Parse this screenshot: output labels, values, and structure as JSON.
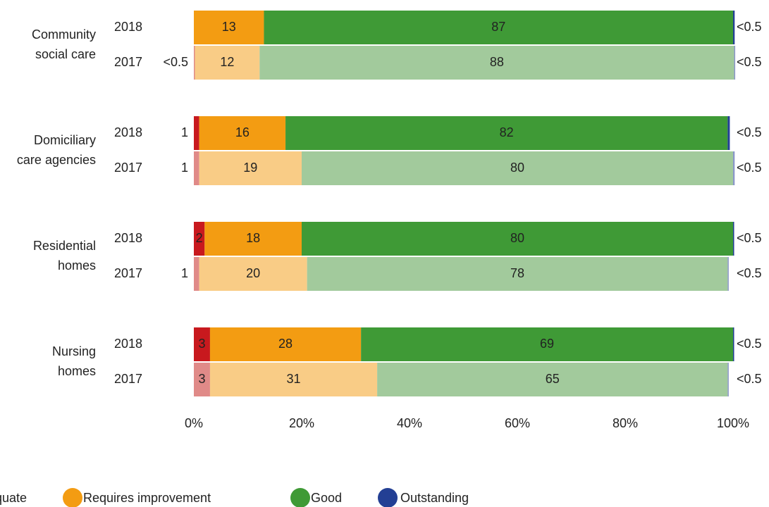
{
  "chart_data": {
    "type": "stacked-bar",
    "orientation": "horizontal",
    "xlim": [
      0,
      100
    ],
    "xticks": [
      {
        "value": 0,
        "label": "0%"
      },
      {
        "value": 20,
        "label": "20%"
      },
      {
        "value": 40,
        "label": "40%"
      },
      {
        "value": 60,
        "label": "60%"
      },
      {
        "value": 80,
        "label": "80%"
      },
      {
        "value": 100,
        "label": "100%"
      }
    ],
    "series": [
      {
        "name": "Inadequate",
        "color": "#c8191e",
        "color_2017": "#e08a88"
      },
      {
        "name": "Requires improvement",
        "color": "#f39c12",
        "color_2017": "#f9cc86"
      },
      {
        "name": "Good",
        "color": "#3f9a36",
        "color_2017": "#a2ca9c"
      },
      {
        "name": "Outstanding",
        "color": "#233f94",
        "color_2017": "#8a97c8"
      }
    ],
    "groups": [
      {
        "label": [
          "Community",
          "social care"
        ],
        "bars": [
          {
            "year": "2018",
            "values": [
              null,
              13,
              87,
              0.3
            ],
            "value_labels": [
              null,
              null,
              null,
              "<0.5"
            ]
          },
          {
            "year": "2017",
            "values": [
              0.2,
              12,
              88,
              0.2
            ],
            "value_labels": [
              "<0.5",
              null,
              null,
              "<0.5"
            ]
          }
        ]
      },
      {
        "label": [
          "Domiciliary",
          "care agencies"
        ],
        "bars": [
          {
            "year": "2018",
            "values": [
              1,
              16,
              82,
              0.4
            ],
            "value_labels": [
              null,
              null,
              null,
              "<0.5"
            ]
          },
          {
            "year": "2017",
            "values": [
              1,
              19,
              80,
              0.3
            ],
            "value_labels": [
              null,
              null,
              null,
              "<0.5"
            ]
          }
        ]
      },
      {
        "label": [
          "Residential",
          "homes"
        ],
        "bars": [
          {
            "year": "2018",
            "values": [
              2,
              18,
              80,
              0.2
            ],
            "value_labels": [
              null,
              null,
              null,
              "<0.5"
            ]
          },
          {
            "year": "2017",
            "values": [
              1,
              20,
              78,
              0.2
            ],
            "value_labels": [
              null,
              null,
              null,
              "<0.5"
            ]
          }
        ]
      },
      {
        "label": [
          "Nursing",
          "homes"
        ],
        "bars": [
          {
            "year": "2018",
            "values": [
              3,
              28,
              69,
              0.2
            ],
            "value_labels": [
              null,
              null,
              null,
              "<0.5"
            ]
          },
          {
            "year": "2017",
            "values": [
              3,
              31,
              65,
              0.2
            ],
            "value_labels": [
              null,
              null,
              null,
              "<0.5"
            ]
          }
        ]
      }
    ]
  }
}
